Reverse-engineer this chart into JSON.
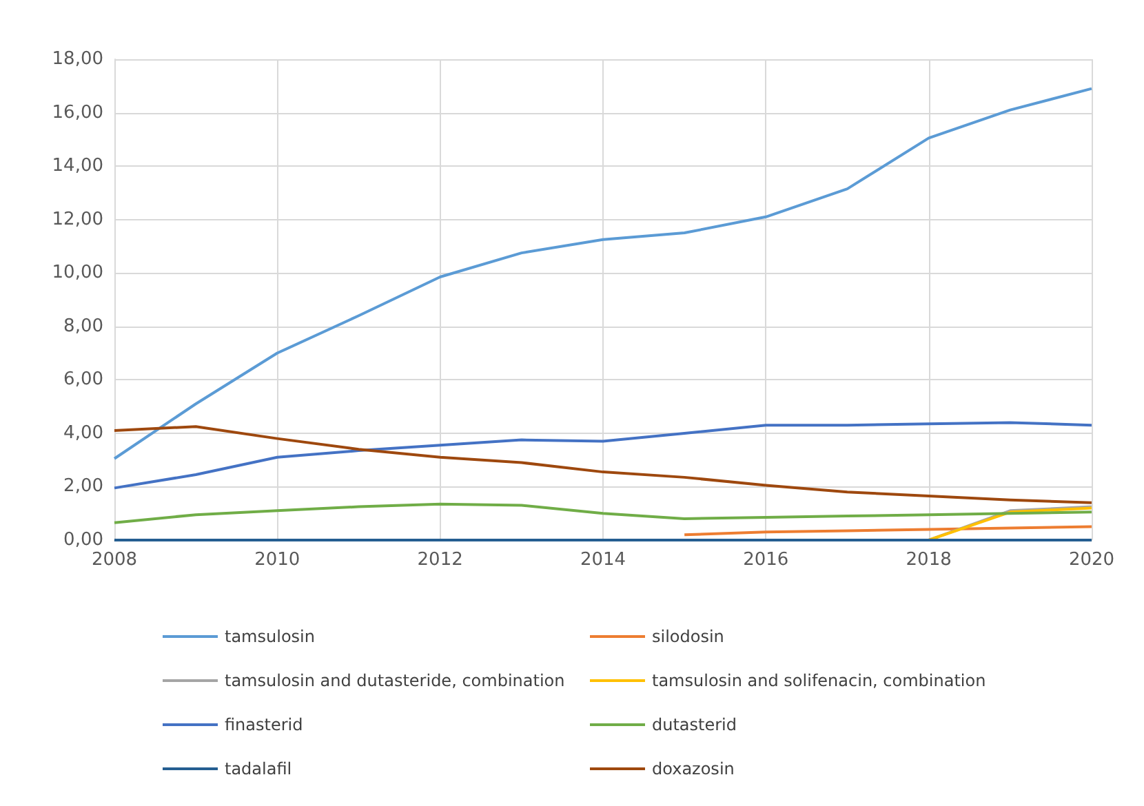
{
  "chart_data": {
    "type": "line",
    "xlim": [
      2008,
      2020
    ],
    "xticks": [
      2008,
      2010,
      2012,
      2014,
      2016,
      2018,
      2020
    ],
    "ylim": [
      0,
      18
    ],
    "yticks": [
      {
        "value": 0,
        "label": "0,00"
      },
      {
        "value": 2,
        "label": "2,00"
      },
      {
        "value": 4,
        "label": "4,00"
      },
      {
        "value": 6,
        "label": "6,00"
      },
      {
        "value": 8,
        "label": "8,00"
      },
      {
        "value": 10,
        "label": "10,00"
      },
      {
        "value": 12,
        "label": "12,00"
      },
      {
        "value": 14,
        "label": "14,00"
      },
      {
        "value": 16,
        "label": "16,00"
      },
      {
        "value": 18,
        "label": "18,00"
      }
    ],
    "grid": true,
    "legend": "bottom",
    "marker": "none",
    "line_style": "solid",
    "x": [
      2008,
      2009,
      2010,
      2011,
      2012,
      2013,
      2014,
      2015,
      2016,
      2017,
      2018,
      2019,
      2020
    ],
    "series": [
      {
        "name": "tamsulosin",
        "color": "#5b9bd5",
        "values": [
          3.05,
          5.1,
          7.0,
          8.4,
          9.85,
          10.75,
          11.25,
          11.5,
          12.1,
          13.15,
          15.05,
          16.1,
          16.9
        ]
      },
      {
        "name": "silodosin",
        "color": "#ed7d31",
        "x": [
          2015,
          2016,
          2017,
          2018,
          2019,
          2020
        ],
        "values": [
          0.2,
          0.3,
          0.35,
          0.4,
          0.45,
          0.5
        ]
      },
      {
        "name": "tamsulosin and dutasteride, combination",
        "color": "#a5a5a5",
        "x": [
          2016,
          2017,
          2018,
          2019,
          2020
        ],
        "values": [
          0,
          0,
          0,
          1.1,
          1.25
        ]
      },
      {
        "name": "tamsulosin and solifenacin, combination",
        "color": "#ffc000",
        "x": [
          2018,
          2019,
          2020
        ],
        "values": [
          0,
          1.05,
          1.2
        ]
      },
      {
        "name": "finasterid",
        "color": "#4472c4",
        "values": [
          1.95,
          2.45,
          3.1,
          3.35,
          3.55,
          3.75,
          3.7,
          4.0,
          4.3,
          4.3,
          4.35,
          4.4,
          4.3
        ]
      },
      {
        "name": "dutasterid",
        "color": "#70ad47",
        "values": [
          0.65,
          0.95,
          1.1,
          1.25,
          1.35,
          1.3,
          1.0,
          0.8,
          0.85,
          0.9,
          0.95,
          1.0,
          1.05
        ]
      },
      {
        "name": "tadalafil",
        "color": "#255e91",
        "values": [
          0,
          0,
          0,
          0,
          0,
          0,
          0,
          0,
          0,
          0,
          0,
          0,
          0
        ]
      },
      {
        "name": "doxazosin",
        "color": "#9e480e",
        "values": [
          4.1,
          4.25,
          3.8,
          3.4,
          3.1,
          2.9,
          2.55,
          2.35,
          2.05,
          1.8,
          1.65,
          1.5,
          1.4
        ]
      }
    ]
  }
}
